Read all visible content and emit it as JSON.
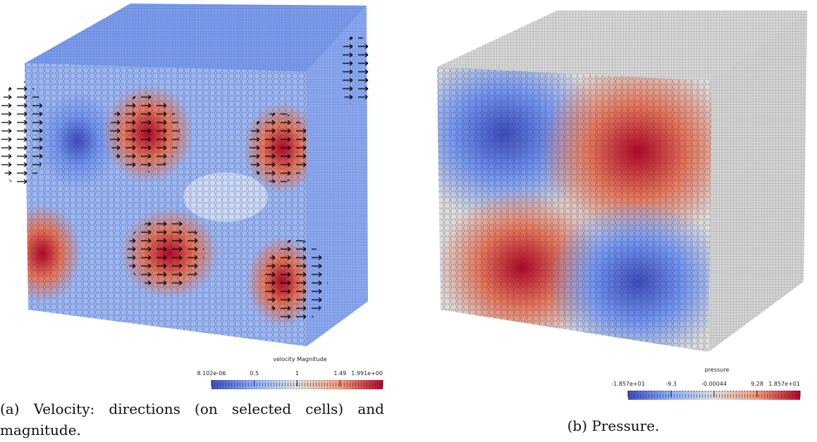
{
  "figures": [
    {
      "colorbar": {
        "title": "velocity Magnitude",
        "ticks": [
          "8.102e-06",
          "0.5",
          "1",
          "1.49",
          "1.991e+00"
        ]
      },
      "caption": "(a) Velocity: directions (on selected cells) and magnitude."
    },
    {
      "colorbar": {
        "title": "pressure",
        "ticks": [
          "-1.857e+01",
          "-9.3",
          "-0.00044",
          "9.28",
          "1.857e+01"
        ]
      },
      "caption": "(b) Pressure."
    }
  ]
}
